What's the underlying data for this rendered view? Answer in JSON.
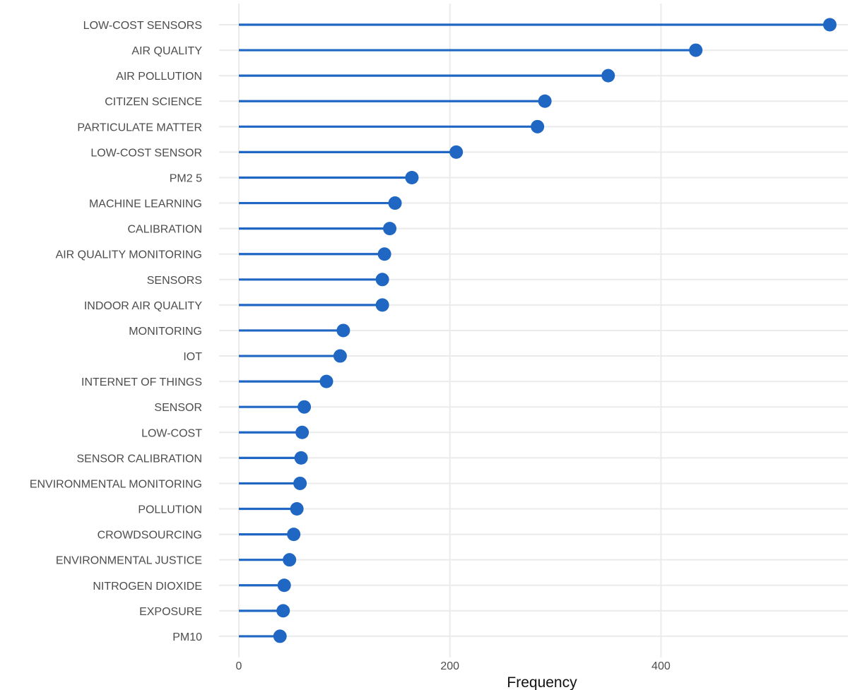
{
  "chart_data": {
    "type": "lollipop",
    "orientation": "horizontal",
    "xlabel": "Frequency",
    "ylabel": "",
    "xlim": [
      -25,
      565
    ],
    "x_ticks": [
      0,
      200,
      400
    ],
    "grid": true,
    "color": "#1f67c2",
    "categories": [
      "LOW-COST SENSORS",
      "AIR QUALITY",
      "AIR POLLUTION",
      "CITIZEN SCIENCE",
      "PARTICULATE MATTER",
      "LOW-COST SENSOR",
      "PM2 5",
      "MACHINE LEARNING",
      "CALIBRATION",
      "AIR QUALITY MONITORING",
      "SENSORS",
      "INDOOR AIR QUALITY",
      "MONITORING",
      "IOT",
      "INTERNET OF THINGS",
      "SENSOR",
      "LOW-COST",
      "SENSOR CALIBRATION",
      "ENVIRONMENTAL MONITORING",
      "POLLUTION",
      "CROWDSOURCING",
      "ENVIRONMENTAL JUSTICE",
      "NITROGEN DIOXIDE",
      "EXPOSURE",
      "PM10"
    ],
    "values": [
      560,
      433,
      350,
      290,
      283,
      206,
      164,
      148,
      143,
      138,
      136,
      136,
      99,
      96,
      83,
      62,
      60,
      59,
      58,
      55,
      52,
      48,
      43,
      42,
      39
    ]
  }
}
